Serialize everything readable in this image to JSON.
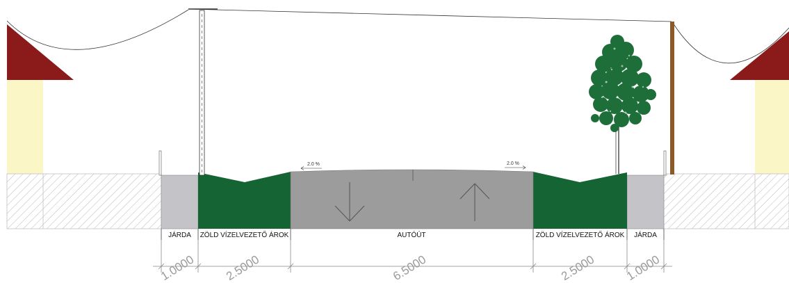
{
  "colors": {
    "roof": "#8b1a1a",
    "house_wall": "#fbf6c6",
    "green_ditch": "#156433",
    "sidewalk": "#c4c4c8",
    "road": "#9c9c9c",
    "tree_leaves": "#1e6e3a",
    "pole_wood": "#8a5a2b",
    "hatch": "#b8b8b8",
    "dimension_text": "#9a9a9a"
  },
  "icons": [
    "arrow-down-icon",
    "arrow-up-icon",
    "tree-icon",
    "house-icon",
    "utility-pole-icon"
  ],
  "slopes": {
    "left": "2.0 %",
    "right": "2.0 %"
  },
  "labels": {
    "sidewalk_left": "JÁRDA",
    "ditch_left": "ZÖLD VÍZELVEZETŐ ÁROK",
    "road": "AUTÓÚT",
    "ditch_right": "ZÖLD VÍZELVEZETŐ ÁROK",
    "sidewalk_right": "JÁRDA"
  },
  "dimensions": {
    "sidewalk_left": "1.0000",
    "ditch_left": "2.5000",
    "road": "6.5000",
    "ditch_right": "2.5000",
    "sidewalk_right": "1.0000"
  }
}
